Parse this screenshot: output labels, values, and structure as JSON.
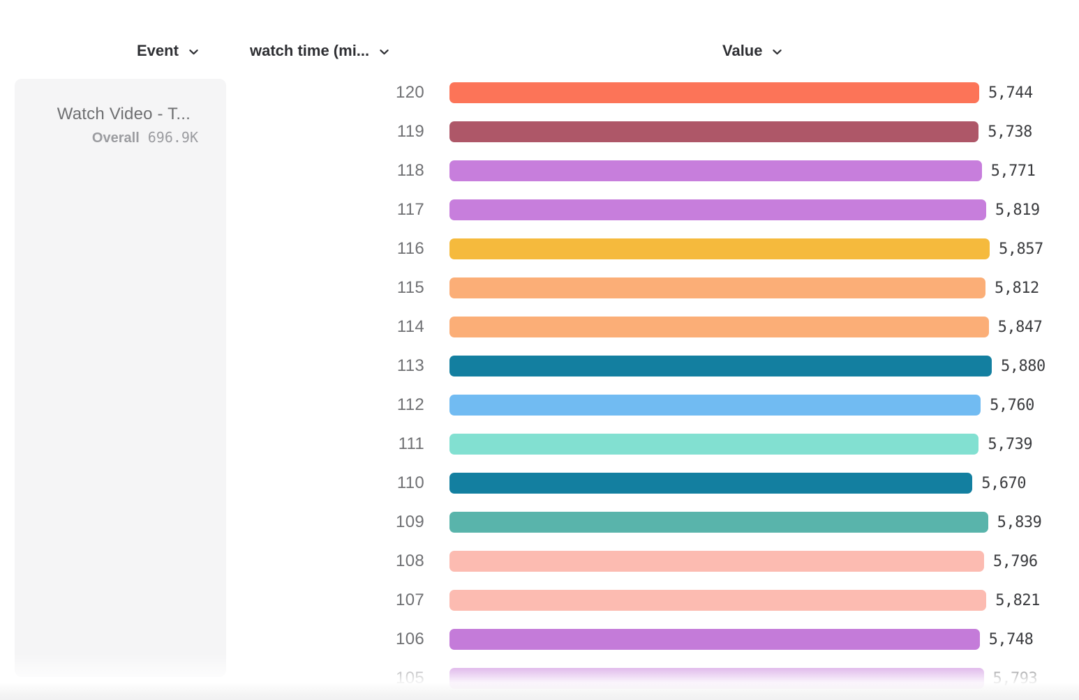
{
  "header": {
    "event": {
      "label": "Event",
      "icon": "chevron-down-icon"
    },
    "watch_time": {
      "label": "watch time (mi...",
      "icon": "chevron-down-icon"
    },
    "value": {
      "label": "Value",
      "icon": "chevron-down-icon"
    }
  },
  "event_panel": {
    "title": "Watch Video - T...",
    "overall_label": "Overall",
    "overall_value": "696.9K"
  },
  "chart_data": {
    "type": "bar",
    "orientation": "horizontal",
    "title": "",
    "xlabel": "Value",
    "ylabel": "watch time (mi...",
    "categories": [
      "120",
      "119",
      "118",
      "117",
      "116",
      "115",
      "114",
      "113",
      "112",
      "111",
      "110",
      "109",
      "108",
      "107",
      "106",
      "105"
    ],
    "values": [
      5744,
      5738,
      5771,
      5819,
      5857,
      5812,
      5847,
      5880,
      5760,
      5739,
      5670,
      5839,
      5796,
      5821,
      5748,
      5793
    ],
    "value_labels": [
      "5,744",
      "5,738",
      "5,771",
      "5,819",
      "5,857",
      "5,812",
      "5,847",
      "5,880",
      "5,760",
      "5,739",
      "5,670",
      "5,839",
      "5,796",
      "5,821",
      "5,748",
      "5,793"
    ],
    "bar_colors": [
      "#FC7458",
      "#AE5768",
      "#C77EDC",
      "#C77EDC",
      "#F5BA3D",
      "#FBAE77",
      "#FBAE77",
      "#137FA0",
      "#71BBF2",
      "#82E0D1",
      "#137FA0",
      "#59B4AB",
      "#FCBBB1",
      "#FCBBB1",
      "#C47BD9",
      "#C47BD9"
    ],
    "xlim": [
      0,
      5880
    ],
    "grid": false,
    "legend": false
  },
  "colors": {
    "page_bg": "#FFFFFF",
    "panel_bg": "#F5F5F6",
    "header_text": "#2E2F33",
    "category_text": "#6F7073",
    "value_text": "#3A3B3E",
    "panel_title_text": "#6E6F71",
    "panel_overall_text": "#9B9CA0"
  }
}
